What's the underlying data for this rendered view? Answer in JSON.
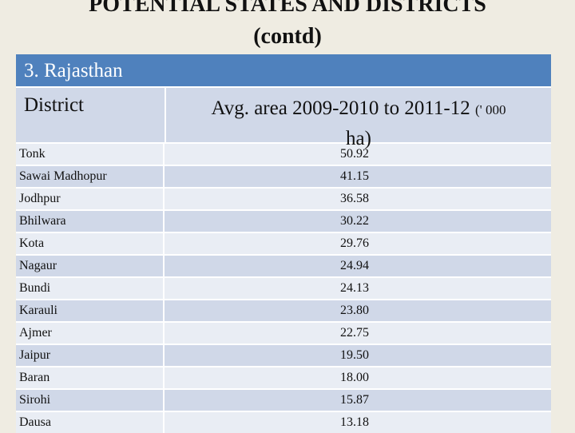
{
  "title": {
    "line1": "POTENTIAL STATES AND DISTRICTS",
    "line2": "(contd)"
  },
  "table": {
    "section_header": "3. Rajasthan",
    "col_district": "District",
    "col_area_main": "Avg. area  2009-2010 to 2011-12",
    "col_area_unit_small": "(' 000",
    "col_area_unit_tail": "ha)",
    "rows": [
      {
        "district": "Tonk",
        "value": "50.92"
      },
      {
        "district": "Sawai  Madhopur",
        "value": "41.15"
      },
      {
        "district": "Jodhpur",
        "value": "36.58"
      },
      {
        "district": "Bhilwara",
        "value": "30.22"
      },
      {
        "district": "Kota",
        "value": "29.76"
      },
      {
        "district": "Nagaur",
        "value": "24.94"
      },
      {
        "district": "Bundi",
        "value": "24.13"
      },
      {
        "district": "Karauli",
        "value": "23.80"
      },
      {
        "district": "Ajmer",
        "value": "22.75"
      },
      {
        "district": "Jaipur",
        "value": "19.50"
      },
      {
        "district": "Baran",
        "value": "18.00"
      },
      {
        "district": "Sirohi",
        "value": "15.87"
      },
      {
        "district": "Dausa",
        "value": "13.18"
      }
    ]
  }
}
